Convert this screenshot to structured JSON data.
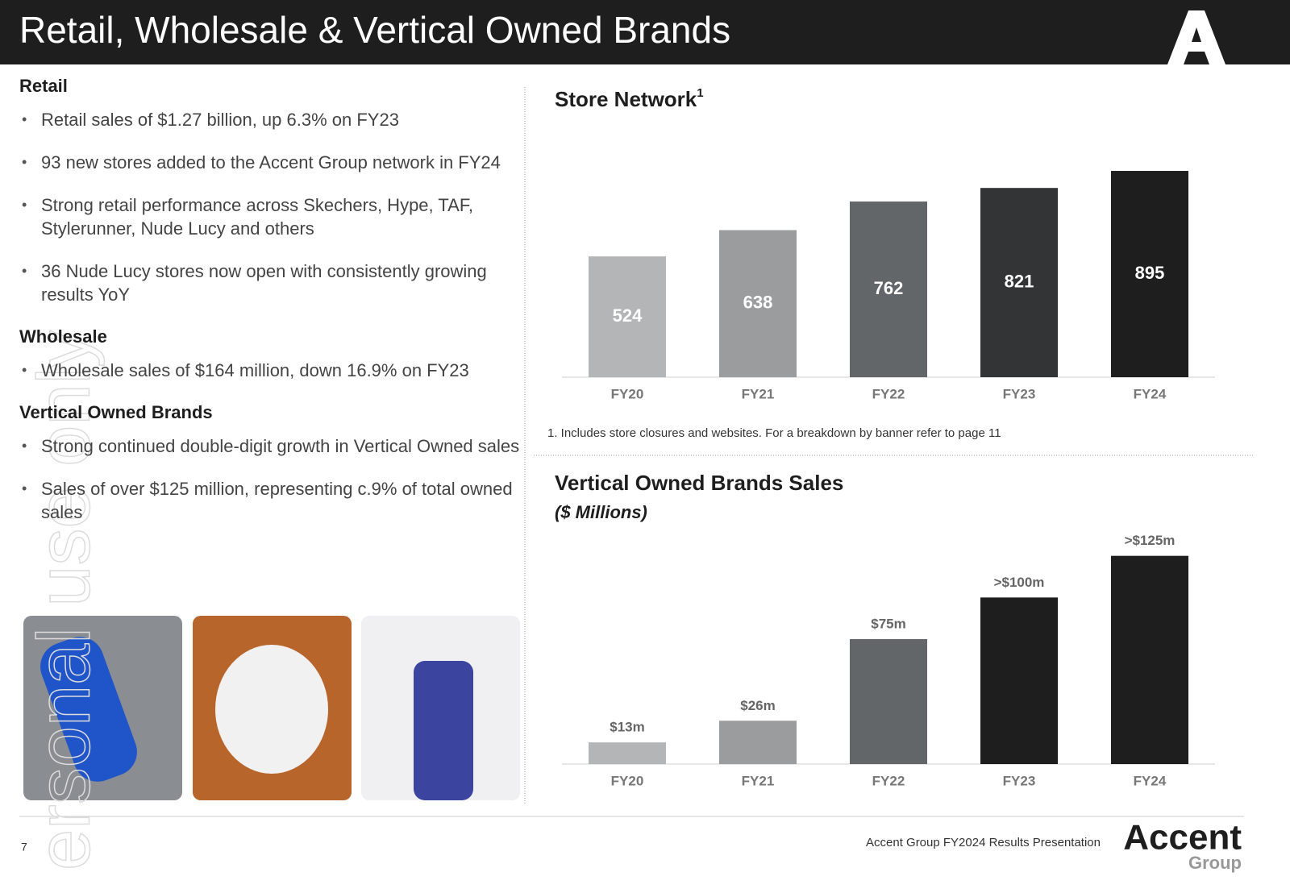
{
  "header": {
    "title": "Retail, Wholesale & Vertical Owned Brands"
  },
  "sections": [
    {
      "heading": "Retail",
      "bullets": [
        "Retail sales of $1.27 billion, up 6.3% on FY23",
        "93 new stores added to the Accent Group network in FY24",
        "Strong retail performance across Skechers, Hype, TAF, Stylerunner, Nude Lucy and others",
        "36 Nude Lucy stores now open with consistently growing results YoY"
      ]
    },
    {
      "heading": "Wholesale",
      "bullets": [
        "Wholesale sales of $164 million, down 16.9% on FY23"
      ]
    },
    {
      "heading": "Vertical Owned Brands",
      "bullets": [
        "Strong continued double-digit growth in Vertical Owned sales",
        "Sales of over $125 million, representing c.9% of total owned sales"
      ]
    }
  ],
  "chart_data": [
    {
      "type": "bar",
      "title": "Store Network",
      "title_note": "1",
      "categories": [
        "FY20",
        "FY21",
        "FY22",
        "FY23",
        "FY24"
      ],
      "values": [
        524,
        638,
        762,
        821,
        895
      ],
      "colors": [
        "#b3b5b6",
        "#9a9c9e",
        "#636668",
        "#333436",
        "#1e1e1e"
      ],
      "ylim": [
        0,
        1000
      ],
      "footnote": "1. Includes store closures and websites. For a breakdown by banner refer to page 11"
    },
    {
      "type": "bar",
      "title": "Vertical Owned Brands Sales",
      "subtitle": "($ Millions)",
      "categories": [
        "FY20",
        "FY21",
        "FY22",
        "FY23",
        "FY24"
      ],
      "values": [
        13,
        26,
        75,
        100,
        125
      ],
      "value_labels": [
        "$13m",
        "$26m",
        "$75m",
        ">$100m",
        ">$125m"
      ],
      "colors": [
        "#b3b5b6",
        "#9a9c9e",
        "#636668",
        "#1e1e1e",
        "#1e1e1e"
      ],
      "ylim": [
        0,
        150
      ]
    }
  ],
  "watermark": "ersonal use only",
  "footer": {
    "page": "7",
    "text": "Accent Group FY2024 Results Presentation",
    "logo": "Accent",
    "logo_sub": "Group"
  }
}
